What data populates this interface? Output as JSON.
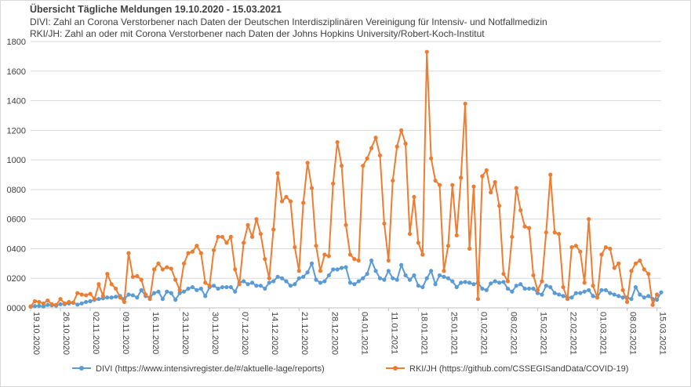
{
  "chart_data": {
    "type": "line",
    "title": "Übersicht Tägliche Meldungen 19.10.2020 - 15.03.2021",
    "subtitles": [
      "DIVI: Zahl an Corona Verstorbener nach Daten der Deutschen Interdisziplinären Vereinigung für Intensiv- und Notfallmedizin",
      "RKI/JH: Zahl an oder mit Corona Verstorbener nach Daten der Johns Hopkins University/Robert-Koch-Institut"
    ],
    "ylim": [
      0,
      1800
    ],
    "yticks": [
      0,
      200,
      400,
      600,
      800,
      1000,
      1200,
      1400,
      1600,
      1800
    ],
    "ytick_labels": [
      "0000",
      "0200",
      "0400",
      "0600",
      "0800",
      "1000",
      "1200",
      "1400",
      "1600",
      "1800"
    ],
    "xtick_labels": [
      "19.10.2020",
      "26.10.2020",
      "02.11.2020",
      "09.11.2020",
      "16.11.2020",
      "23.11.2020",
      "30.11.2020",
      "07.12.2020",
      "14.12.2020",
      "21.12.2020",
      "28.12.2020",
      "04.01.2021",
      "11.01.2021",
      "18.01.2021",
      "25.01.2021",
      "01.02.2021",
      "08.02.2021",
      "15.02.2021",
      "22.02.2021",
      "01.03.2021",
      "08.03.2021",
      "15.03.2021"
    ],
    "xtick_step_days": 7,
    "grid": true,
    "legend_position": "bottom",
    "series": [
      {
        "name": "DIVI (https://www.intensivregister.de/#/aktuelle-lage/reports)",
        "color": "#5b9bd5",
        "values": [
          8,
          12,
          14,
          10,
          20,
          18,
          15,
          25,
          25,
          30,
          35,
          22,
          30,
          40,
          45,
          55,
          60,
          65,
          70,
          70,
          75,
          80,
          60,
          90,
          85,
          70,
          120,
          80,
          70,
          100,
          110,
          60,
          110,
          100,
          55,
          100,
          110,
          130,
          140,
          120,
          130,
          80,
          140,
          150,
          130,
          140,
          140,
          140,
          110,
          170,
          180,
          160,
          170,
          150,
          150,
          130,
          170,
          180,
          210,
          200,
          180,
          150,
          160,
          200,
          210,
          240,
          300,
          190,
          170,
          180,
          220,
          260,
          260,
          270,
          275,
          170,
          160,
          180,
          200,
          230,
          320,
          250,
          200,
          190,
          250,
          200,
          190,
          290,
          220,
          190,
          220,
          150,
          140,
          200,
          250,
          160,
          220,
          210,
          200,
          180,
          140,
          170,
          175,
          170,
          160,
          170,
          130,
          120,
          165,
          180,
          170,
          175,
          130,
          110,
          150,
          160,
          130,
          130,
          130,
          100,
          90,
          150,
          140,
          100,
          90,
          80,
          70,
          70,
          100,
          100,
          110,
          120,
          80,
          70,
          120,
          120,
          100,
          90,
          80,
          70,
          70,
          60,
          140,
          90,
          70,
          80,
          60,
          55,
          105
        ]
      },
      {
        "name": "RKI/JH (https://github.com/CSSEGISandData/COVID-19)",
        "color": "#ed7d31",
        "values": [
          10,
          45,
          40,
          30,
          50,
          25,
          20,
          60,
          30,
          40,
          35,
          100,
          90,
          85,
          95,
          60,
          160,
          80,
          230,
          160,
          130,
          70,
          40,
          370,
          210,
          215,
          190,
          90,
          60,
          260,
          300,
          260,
          275,
          265,
          190,
          120,
          300,
          370,
          380,
          420,
          370,
          170,
          150,
          390,
          480,
          480,
          440,
          480,
          260,
          160,
          440,
          560,
          480,
          600,
          500,
          330,
          200,
          530,
          910,
          720,
          750,
          720,
          410,
          250,
          710,
          980,
          810,
          420,
          250,
          360,
          350,
          840,
          1120,
          960,
          560,
          360,
          330,
          320,
          960,
          1010,
          1080,
          1150,
          1030,
          570,
          320,
          860,
          1090,
          1200,
          1110,
          500,
          750,
          440,
          360,
          1730,
          1010,
          860,
          830,
          250,
          420,
          830,
          490,
          880,
          1380,
          400,
          820,
          60,
          890,
          930,
          780,
          850,
          690,
          230,
          180,
          480,
          810,
          660,
          550,
          540,
          220,
          120,
          180,
          510,
          900,
          510,
          500,
          140,
          60,
          410,
          420,
          380,
          170,
          600,
          150,
          70,
          360,
          410,
          400,
          270,
          300,
          120,
          40,
          250,
          300,
          320,
          260,
          230,
          20,
          90
        ]
      }
    ]
  }
}
